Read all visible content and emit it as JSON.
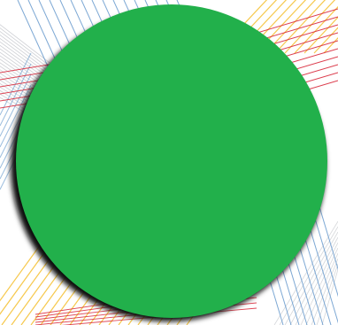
{
  "scene": {
    "background_color": "#ffffff",
    "circle_color": "#22b04b",
    "shadow_color": "#111111",
    "line_colors": {
      "blue": "#6f9fcf",
      "yellow": "#f5c542",
      "red": "#d8283a",
      "gray": "#b9bcc2"
    }
  }
}
